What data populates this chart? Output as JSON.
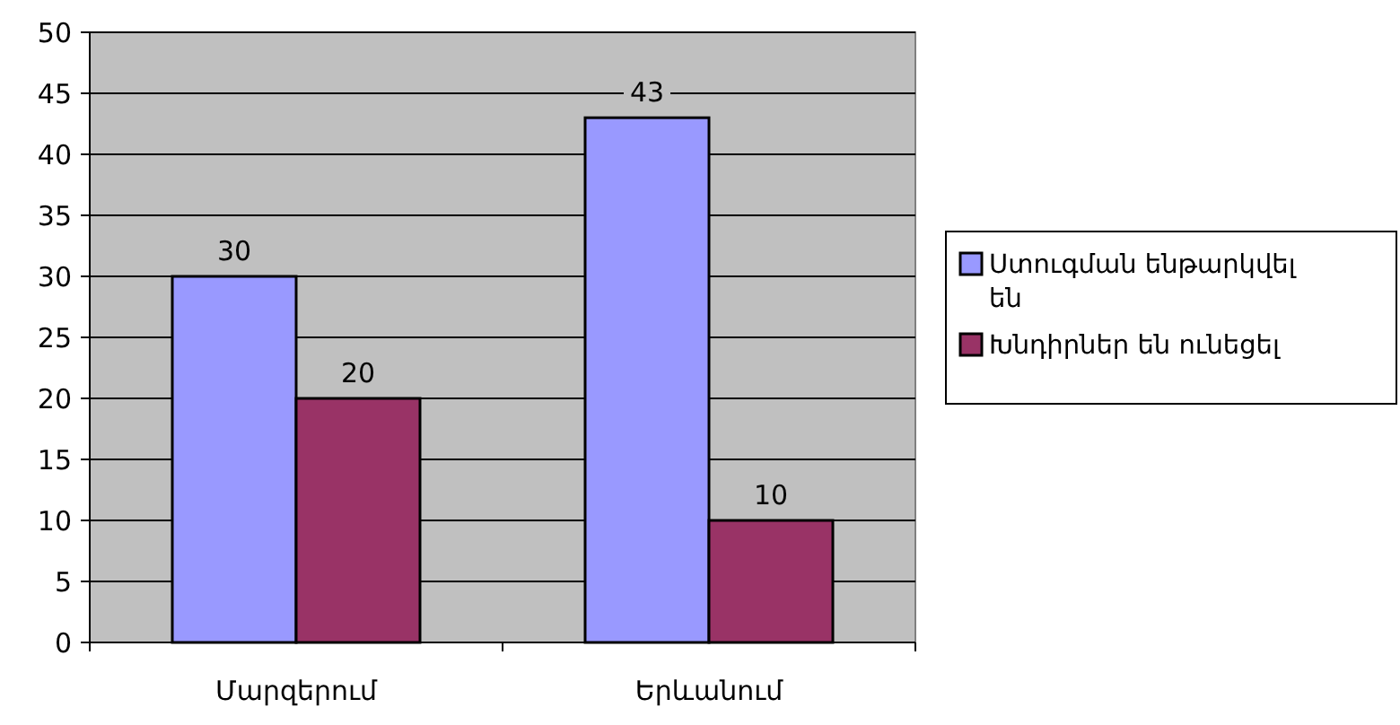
{
  "chart_data": {
    "type": "bar",
    "categories": [
      "Մարզերում",
      "Երևանում"
    ],
    "series": [
      {
        "name": "Ստուգման ենթարկվել են",
        "color": "#9999ff",
        "values": [
          30,
          43
        ]
      },
      {
        "name": "Խնդիրներ են ունեցել",
        "color": "#993366",
        "values": [
          20,
          10
        ]
      }
    ],
    "ylim": [
      0,
      50
    ],
    "yticks": [
      0,
      5,
      10,
      15,
      20,
      25,
      30,
      35,
      40,
      45,
      50
    ],
    "grid": "y",
    "legend": "right",
    "data_labels": true
  }
}
